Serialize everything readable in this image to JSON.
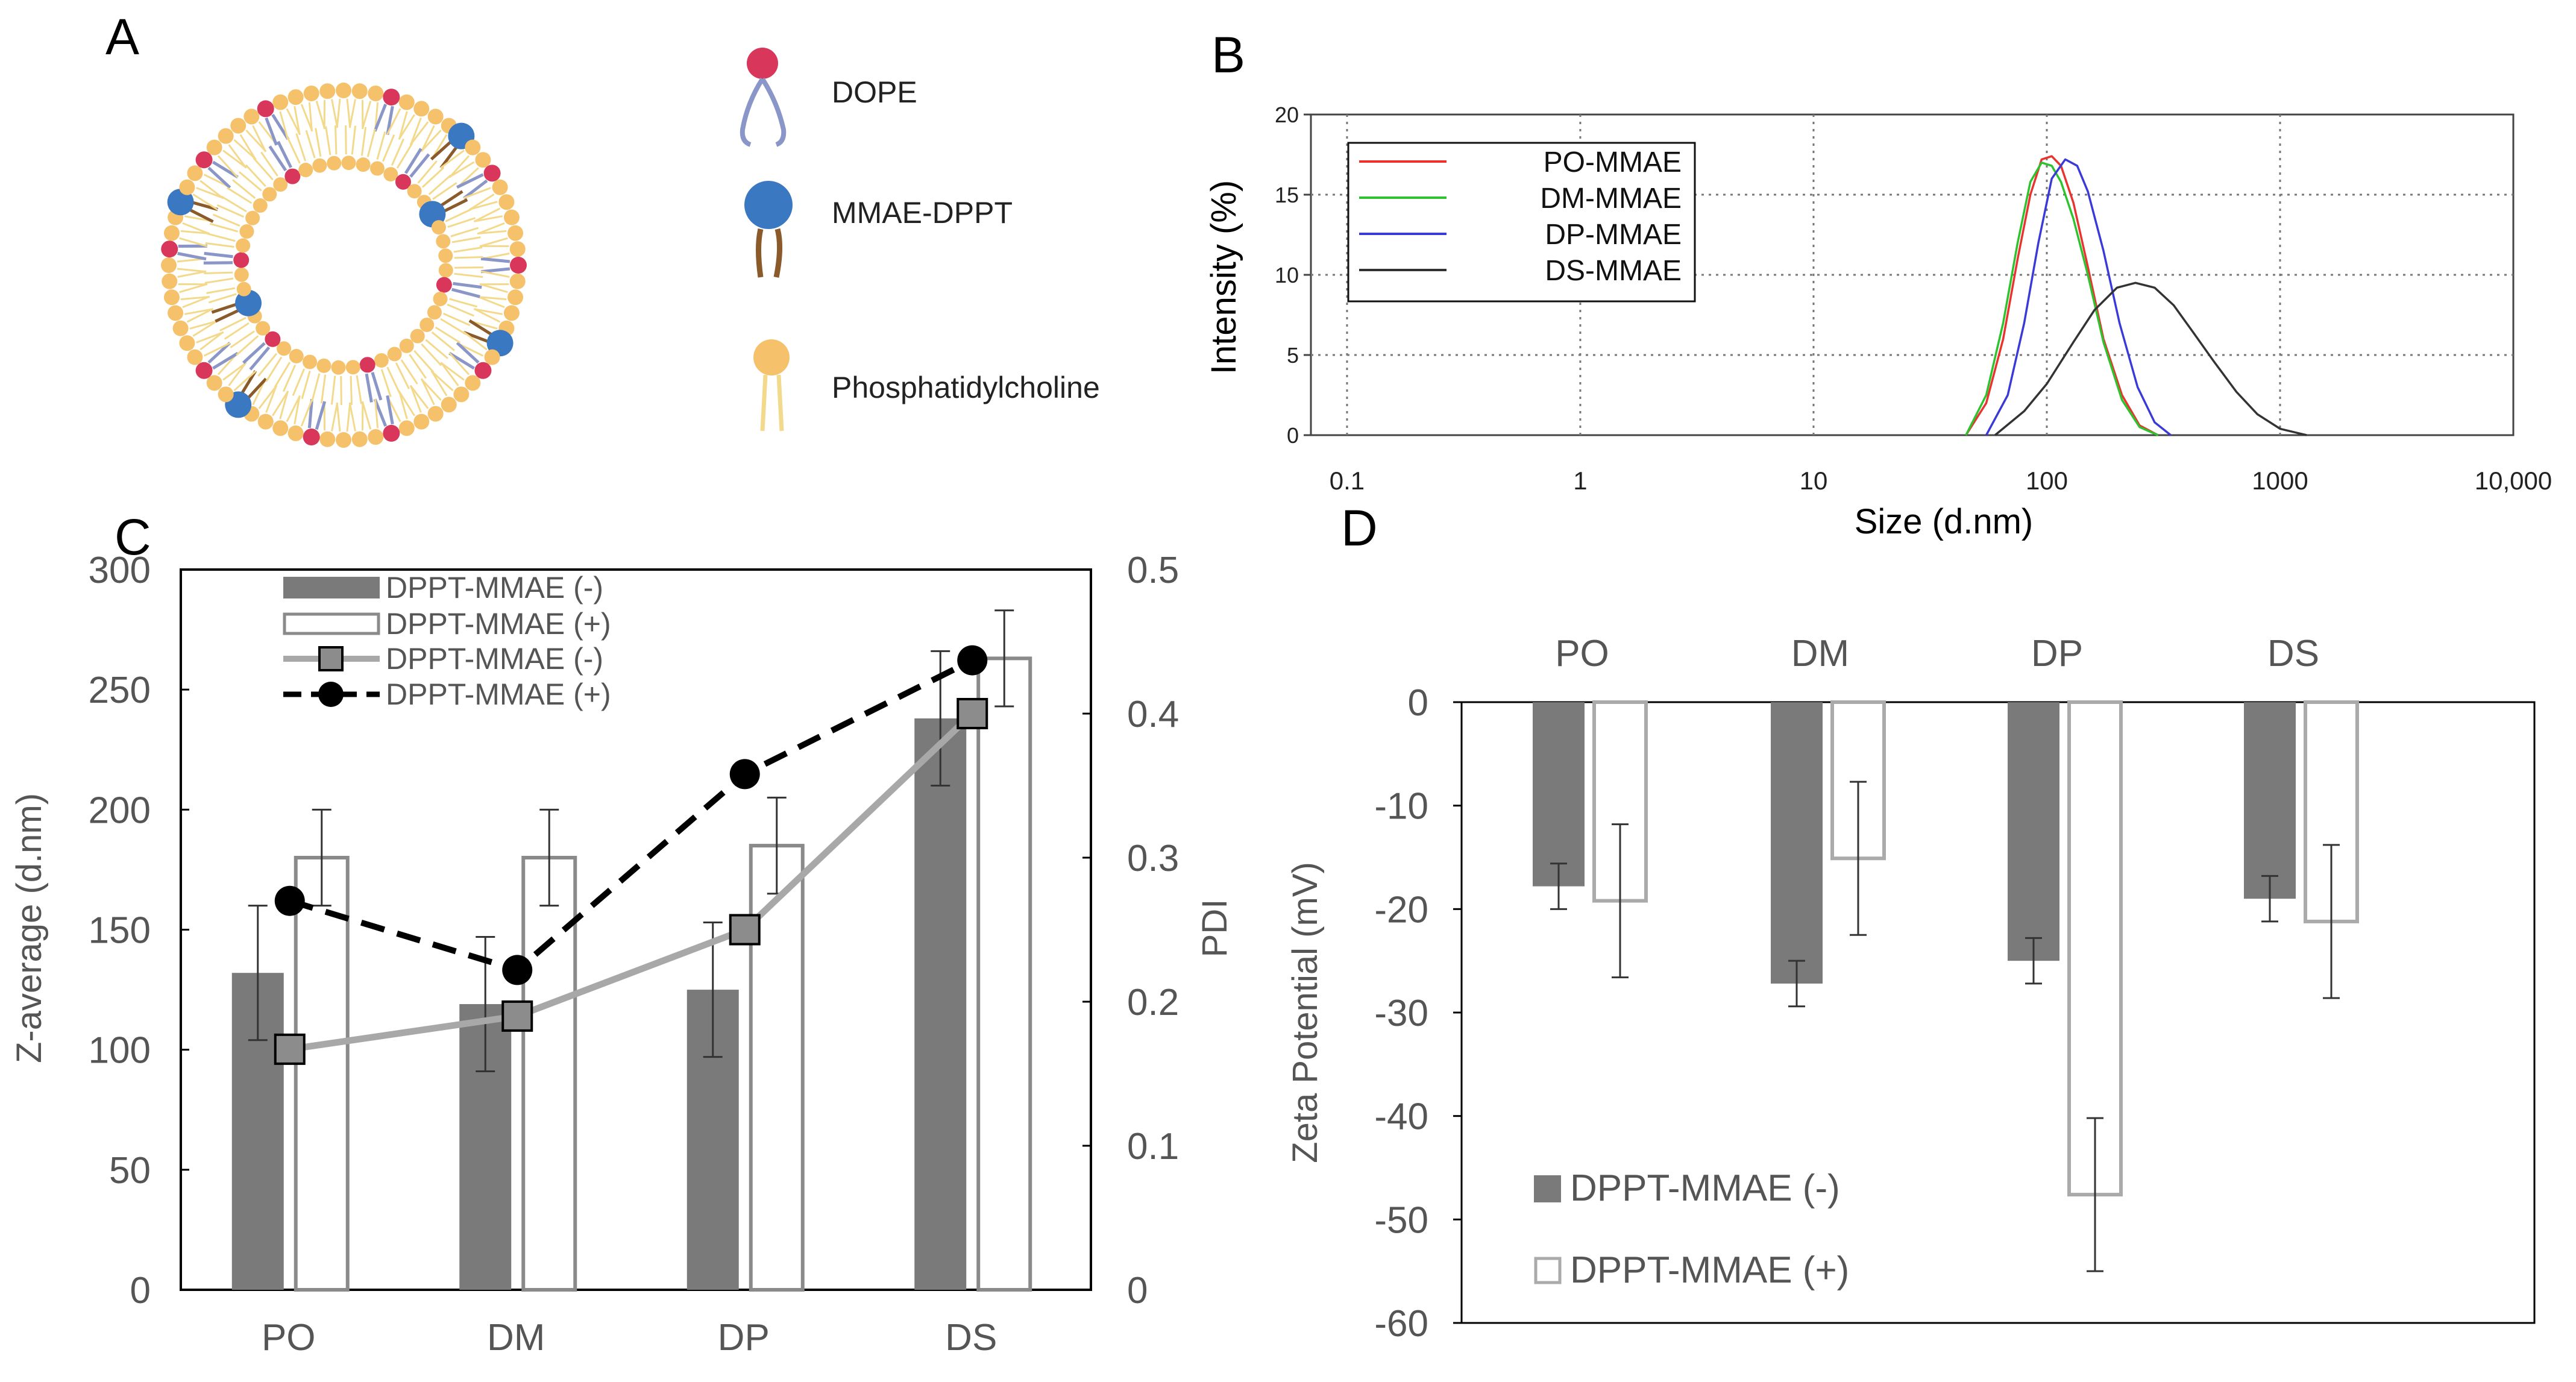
{
  "panel_letters": {
    "a": "A",
    "b": "B",
    "c": "C",
    "d": "D"
  },
  "panel_a": {
    "legend": [
      {
        "label": "DOPE",
        "icon": "dope-lipid-icon"
      },
      {
        "label": "MMAE-DPPT",
        "icon": "mmae-dppt-lipid-icon"
      },
      {
        "label": "Phosphatidylcholine",
        "icon": "phosphatidylcholine-lipid-icon"
      }
    ],
    "colors": {
      "pc": "#f5c26b",
      "dope": "#d8365a",
      "mmae": "#3b78c2",
      "tail_dope": "#8b96c8",
      "tail_mmae": "#8a5a2b",
      "tail_pc": "#f3d98c"
    }
  },
  "chart_data": [
    {
      "panel": "B",
      "type": "line",
      "title": "",
      "xlabel": "Size (d.nm)",
      "ylabel": "Intensity (%)",
      "xscale": "log",
      "xlim": [
        0.07,
        10000
      ],
      "ylim": [
        0,
        20
      ],
      "x_ticks": [
        0.1,
        1,
        10,
        100,
        1000,
        10000
      ],
      "x_tick_labels": [
        "0.1",
        "1",
        "10",
        "100",
        "1000",
        "10,000"
      ],
      "y_ticks": [
        0,
        5,
        10,
        15,
        20
      ],
      "y_tick_labels": [
        "0",
        "5",
        "10",
        "15",
        "20"
      ],
      "grid": true,
      "legend_position": "top-left",
      "series": [
        {
          "name": "PO-MMAE",
          "color": "#e8332f",
          "points": [
            [
              45,
              0
            ],
            [
              55,
              2
            ],
            [
              65,
              6
            ],
            [
              75,
              11
            ],
            [
              85,
              15
            ],
            [
              95,
              17.2
            ],
            [
              105,
              17.4
            ],
            [
              115,
              16.8
            ],
            [
              130,
              14.5
            ],
            [
              150,
              10.5
            ],
            [
              175,
              6
            ],
            [
              210,
              2.5
            ],
            [
              250,
              0.6
            ],
            [
              300,
              0
            ]
          ]
        },
        {
          "name": "DM-MMAE",
          "color": "#2ec22e",
          "points": [
            [
              45,
              0
            ],
            [
              55,
              2.5
            ],
            [
              65,
              7
            ],
            [
              75,
              12
            ],
            [
              85,
              15.8
            ],
            [
              95,
              17
            ],
            [
              105,
              16.8
            ],
            [
              115,
              15.8
            ],
            [
              130,
              13.5
            ],
            [
              150,
              10
            ],
            [
              175,
              5.8
            ],
            [
              210,
              2.2
            ],
            [
              250,
              0.5
            ],
            [
              300,
              0
            ]
          ]
        },
        {
          "name": "DP-MMAE",
          "color": "#3a3ad8",
          "points": [
            [
              55,
              0
            ],
            [
              68,
              2.5
            ],
            [
              80,
              7
            ],
            [
              92,
              12
            ],
            [
              105,
              16
            ],
            [
              120,
              17.2
            ],
            [
              135,
              16.8
            ],
            [
              150,
              15.2
            ],
            [
              175,
              11.5
            ],
            [
              205,
              7
            ],
            [
              245,
              3
            ],
            [
              290,
              0.8
            ],
            [
              340,
              0
            ]
          ]
        },
        {
          "name": "DS-MMAE",
          "color": "#333333",
          "points": [
            [
              60,
              0
            ],
            [
              80,
              1.5
            ],
            [
              100,
              3.2
            ],
            [
              130,
              5.8
            ],
            [
              160,
              7.8
            ],
            [
              200,
              9.2
            ],
            [
              240,
              9.5
            ],
            [
              290,
              9.2
            ],
            [
              350,
              8.1
            ],
            [
              420,
              6.5
            ],
            [
              520,
              4.6
            ],
            [
              650,
              2.7
            ],
            [
              800,
              1.3
            ],
            [
              1000,
              0.4
            ],
            [
              1300,
              0
            ]
          ]
        }
      ]
    },
    {
      "panel": "C",
      "type": "bar",
      "title": "",
      "xlabel": "",
      "ylabel": "Z-average (d.nm)",
      "ylabel_right": "PDI",
      "categories": [
        "PO",
        "DM",
        "DP",
        "DS"
      ],
      "ylim": [
        0,
        300
      ],
      "y_ticks": [
        0,
        50,
        100,
        150,
        200,
        250,
        300
      ],
      "ylim_right": [
        0,
        0.5
      ],
      "y2_ticks": [
        0,
        0.1,
        0.2,
        0.3,
        0.4,
        0.5
      ],
      "y2_tick_labels": [
        "0",
        "0.1",
        "0.2",
        "0.3",
        "0.4",
        "0.5"
      ],
      "legend_position": "top-left",
      "bar_series": [
        {
          "name": "DPPT-MMAE (-)",
          "style": "filled",
          "color": "#7a7a7a",
          "values": [
            132,
            119,
            125,
            238
          ],
          "errors": [
            28,
            28,
            28,
            28
          ]
        },
        {
          "name": "DPPT-MMAE (+)",
          "style": "outline",
          "color": "#8a8a8a",
          "values": [
            180,
            180,
            185,
            263
          ],
          "errors": [
            20,
            20,
            20,
            20
          ]
        }
      ],
      "line_series": [
        {
          "name": "DPPT-MMAE (-)",
          "axis": "right",
          "marker": "square",
          "dash": "solid",
          "color": "#a8a8a8",
          "values": [
            0.167,
            0.19,
            0.25,
            0.4
          ]
        },
        {
          "name": "DPPT-MMAE (+)",
          "axis": "right",
          "marker": "circle",
          "dash": "dashed",
          "color": "#000000",
          "values": [
            0.27,
            0.222,
            0.358,
            0.437
          ]
        }
      ]
    },
    {
      "panel": "D",
      "type": "bar",
      "title": "",
      "xlabel": "",
      "ylabel": "Zeta Potential (mV)",
      "categories": [
        "PO",
        "DM",
        "DP",
        "DS"
      ],
      "category_labels_position": "top",
      "ylim": [
        -60,
        0
      ],
      "y_ticks": [
        0,
        -10,
        -20,
        -30,
        -40,
        -50,
        -60
      ],
      "legend_position": "bottom-left",
      "series": [
        {
          "name": "DPPT-MMAE (-)",
          "style": "filled",
          "color": "#7a7a7a",
          "values": [
            -17.8,
            -27.2,
            -25,
            -19
          ],
          "errors": [
            2.2,
            2.2,
            2.2,
            2.2
          ]
        },
        {
          "name": "DPPT-MMAE (+)",
          "style": "outline",
          "color": "#aaaaaa",
          "values": [
            -19.2,
            -15.1,
            -47.6,
            -21.2
          ],
          "errors": [
            7.4,
            7.4,
            7.4,
            7.4
          ]
        }
      ]
    }
  ]
}
